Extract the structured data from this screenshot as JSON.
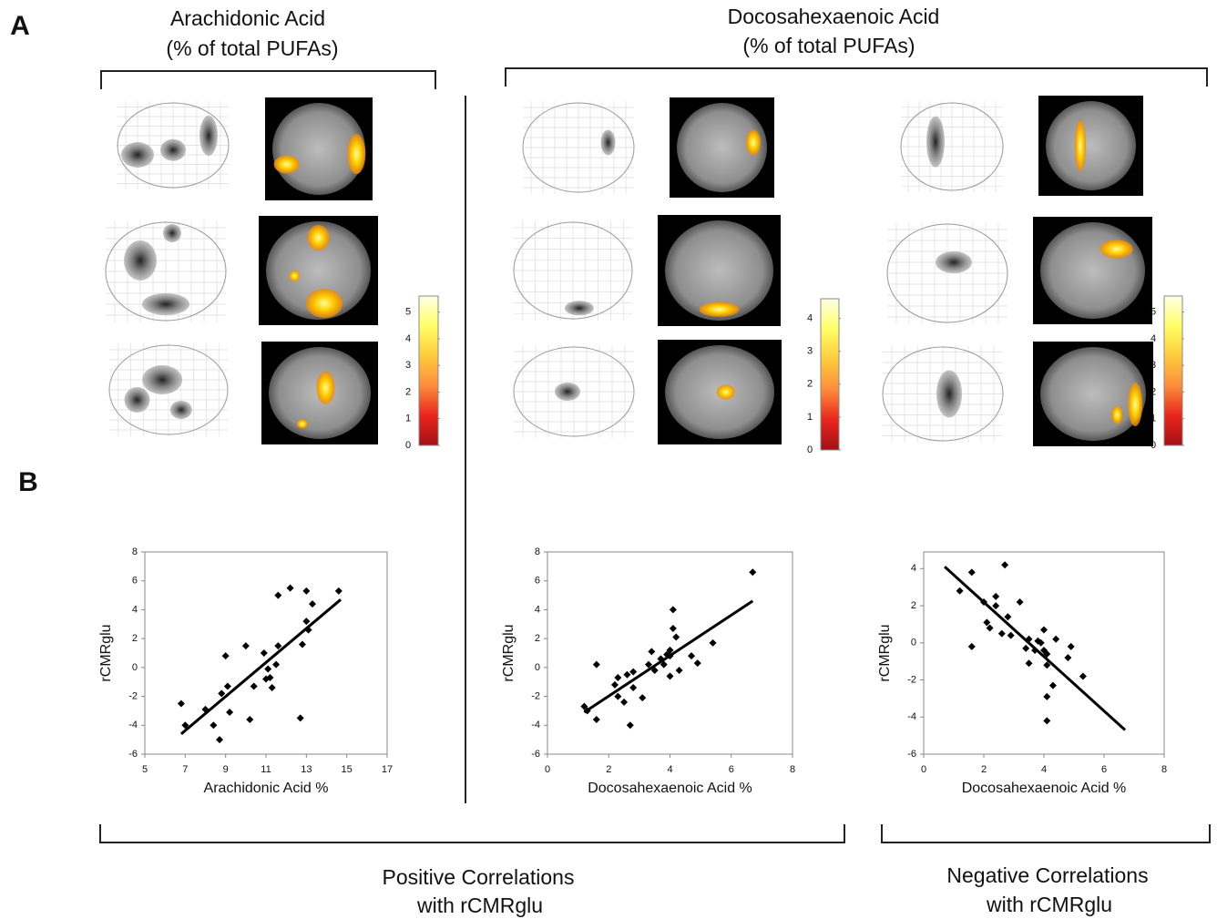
{
  "figure": {
    "panel_a": "A",
    "panel_b": "B",
    "heading_left": [
      "Arachidonic Acid",
      "(% of total PUFAs)"
    ],
    "heading_right": [
      "Docosahexaenoic Acid",
      "(% of total PUFAs)"
    ],
    "footer_left": [
      "Positive Correlations",
      "with rCMRglu"
    ],
    "footer_right": [
      "Negative Correlations",
      "with rCMRglu"
    ]
  },
  "chart_data": [
    {
      "type": "scatter",
      "x_label": "Arachidonic Acid %",
      "y_label": "rCMRglu",
      "color": "#000000",
      "x": [
        6.8,
        7.0,
        8.0,
        8.4,
        8.7,
        8.8,
        9.0,
        9.1,
        9.2,
        10.0,
        10.2,
        10.4,
        10.9,
        11.0,
        11.1,
        11.2,
        11.3,
        11.5,
        11.6,
        11.6,
        12.2,
        12.7,
        12.8,
        13.0,
        13.0,
        13.1,
        13.3,
        14.6
      ],
      "y": [
        -2.5,
        -4.0,
        -2.9,
        -4.0,
        -5.0,
        -1.8,
        0.8,
        -1.3,
        -3.1,
        1.5,
        -3.6,
        -1.3,
        1.0,
        -0.8,
        -0.1,
        -0.7,
        -1.4,
        0.2,
        1.5,
        5.0,
        5.5,
        -3.5,
        1.6,
        5.3,
        3.2,
        2.6,
        4.4,
        5.3
      ],
      "trendline": {
        "x": [
          6.8,
          14.7
        ],
        "y": [
          -4.6,
          4.7
        ]
      },
      "xlim": [
        5,
        17
      ],
      "ylim": [
        -6,
        8
      ],
      "xticks": [
        5,
        7,
        9,
        11,
        13,
        15,
        17
      ],
      "yticks": [
        -6,
        -4,
        -2,
        0,
        2,
        4,
        6,
        8
      ]
    },
    {
      "type": "scatter",
      "x_label": "Docosahexaenoic Acid %",
      "y_label": "rCMRglu",
      "color": "#000000",
      "x": [
        1.2,
        1.3,
        1.6,
        1.6,
        2.2,
        2.3,
        2.3,
        2.5,
        2.6,
        2.7,
        2.8,
        2.8,
        3.1,
        3.3,
        3.4,
        3.5,
        3.7,
        3.8,
        3.9,
        4.0,
        4.0,
        4.0,
        4.1,
        4.1,
        4.2,
        4.3,
        4.7,
        4.9,
        5.4,
        6.7
      ],
      "y": [
        -2.7,
        -3.0,
        0.2,
        -3.6,
        -1.2,
        -0.7,
        -2.0,
        -2.4,
        -0.5,
        -4.0,
        -0.3,
        -1.4,
        -2.1,
        0.2,
        1.1,
        -0.2,
        0.6,
        0.2,
        0.9,
        -0.6,
        1.2,
        0.8,
        4.0,
        2.7,
        2.1,
        -0.2,
        0.8,
        0.3,
        1.7,
        6.6
      ],
      "trendline": {
        "x": [
          1.2,
          6.7
        ],
        "y": [
          -3.1,
          4.6
        ]
      },
      "xlim": [
        0,
        8
      ],
      "ylim": [
        -6,
        8
      ],
      "xticks": [
        0,
        2,
        4,
        6,
        8
      ],
      "yticks": [
        -6,
        -4,
        -2,
        0,
        2,
        4,
        6,
        8
      ]
    },
    {
      "type": "scatter",
      "x_label": "Docosahexaenoic Acid %",
      "y_label": "rCMRglu",
      "color": "#000000",
      "x": [
        1.2,
        1.6,
        1.6,
        2.0,
        2.1,
        2.2,
        2.4,
        2.4,
        2.6,
        2.7,
        2.8,
        2.9,
        3.2,
        3.4,
        3.5,
        3.5,
        3.7,
        3.8,
        3.9,
        4.0,
        4.0,
        4.1,
        4.1,
        4.1,
        4.1,
        4.3,
        4.4,
        4.8,
        4.9,
        5.3
      ],
      "y": [
        2.8,
        3.8,
        -0.2,
        2.2,
        1.1,
        0.8,
        2.5,
        2.0,
        0.5,
        4.2,
        1.4,
        0.4,
        2.2,
        -0.3,
        0.2,
        -1.1,
        -0.4,
        0.1,
        0.0,
        -0.4,
        0.7,
        -0.6,
        -1.2,
        -4.2,
        -2.9,
        -2.3,
        0.2,
        -0.8,
        -0.2,
        -1.8
      ],
      "trendline": {
        "x": [
          0.7,
          6.7
        ],
        "y": [
          4.1,
          -4.7
        ]
      },
      "xlim": [
        0,
        8
      ],
      "ylim": [
        -6,
        4.9
      ],
      "xticks": [
        0,
        2,
        4,
        6,
        8
      ],
      "yticks": [
        -6,
        -4,
        -2,
        0,
        2,
        4
      ]
    },
    {
      "type": "colorbar",
      "colors": [
        "#a50f15",
        "#e8261c",
        "#fd8d3c",
        "#fecc3c",
        "#ffff66",
        "#ffffe8"
      ],
      "ylim": [
        0,
        5.6
      ],
      "yticks": [
        0,
        1,
        2,
        3,
        4,
        5
      ]
    },
    {
      "type": "colorbar",
      "colors": [
        "#a50f15",
        "#e8261c",
        "#fd8d3c",
        "#fecc3c",
        "#ffff66",
        "#ffffe8"
      ],
      "ylim": [
        0,
        4.6
      ],
      "yticks": [
        0,
        1,
        2,
        3,
        4
      ]
    },
    {
      "type": "colorbar",
      "colors": [
        "#a50f15",
        "#e8261c",
        "#fd8d3c",
        "#fecc3c",
        "#ffff66",
        "#ffffe8"
      ],
      "ylim": [
        0,
        5.6
      ],
      "yticks": [
        0,
        1,
        2,
        3,
        4,
        5
      ]
    }
  ]
}
